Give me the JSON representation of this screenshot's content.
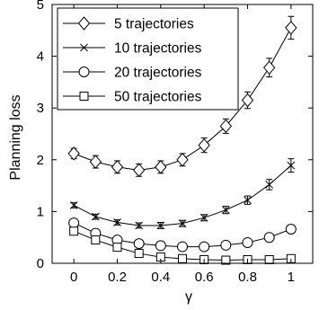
{
  "chart_data": {
    "type": "line",
    "xlabel": "γ",
    "ylabel": "Planning loss",
    "xlim": [
      -0.1,
      1.1
    ],
    "ylim": [
      0,
      5
    ],
    "xticks": [
      "0",
      "0.2",
      "0.4",
      "0.6",
      "0.8",
      "1"
    ],
    "yticks": [
      "0",
      "1",
      "2",
      "3",
      "4",
      "5"
    ],
    "grid": false,
    "legend_position": "top-left",
    "x": [
      0,
      0.1,
      0.2,
      0.3,
      0.4,
      0.5,
      0.6,
      0.7,
      0.8,
      0.9,
      1.0
    ],
    "series": [
      {
        "name": "5 trajectories",
        "marker": "diamond",
        "values": [
          2.12,
          1.96,
          1.86,
          1.8,
          1.86,
          2.0,
          2.28,
          2.65,
          3.15,
          3.78,
          4.55
        ],
        "errors": [
          0.1,
          0.12,
          0.12,
          0.12,
          0.12,
          0.12,
          0.14,
          0.14,
          0.16,
          0.18,
          0.22
        ]
      },
      {
        "name": "10 trajectories",
        "marker": "x",
        "values": [
          1.12,
          0.9,
          0.79,
          0.73,
          0.73,
          0.77,
          0.88,
          1.03,
          1.22,
          1.52,
          1.89
        ],
        "errors": [
          0.05,
          0.05,
          0.05,
          0.05,
          0.06,
          0.06,
          0.06,
          0.07,
          0.08,
          0.1,
          0.13
        ]
      },
      {
        "name": "20 trajectories",
        "marker": "circle",
        "values": [
          0.78,
          0.58,
          0.45,
          0.38,
          0.34,
          0.32,
          0.32,
          0.35,
          0.4,
          0.5,
          0.66
        ],
        "errors": [
          0.07,
          0.07,
          0.06,
          0.05,
          0.05,
          0.05,
          0.05,
          0.05,
          0.05,
          0.06,
          0.08
        ]
      },
      {
        "name": "50 trajectories",
        "marker": "square",
        "values": [
          0.62,
          0.45,
          0.31,
          0.19,
          0.12,
          0.09,
          0.07,
          0.06,
          0.07,
          0.07,
          0.09
        ],
        "errors": [
          0.05,
          0.05,
          0.04,
          0.04,
          0.03,
          0.03,
          0.02,
          0.02,
          0.02,
          0.02,
          0.02
        ]
      }
    ]
  }
}
